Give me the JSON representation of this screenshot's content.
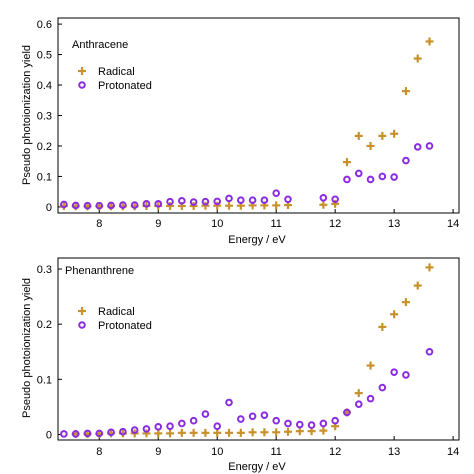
{
  "colors": {
    "radical": "#c8912a",
    "protonated": "#8a2be2",
    "axis": "#000000"
  },
  "chart_data": [
    {
      "type": "scatter",
      "title": "Anthracene",
      "xlabel": "Energy / eV",
      "ylabel": "Pseudo photoionization yield",
      "xlim": [
        7.3,
        14.1
      ],
      "ylim": [
        -0.02,
        0.62
      ],
      "xticks": [
        8,
        9,
        10,
        11,
        12,
        13,
        14
      ],
      "xtick_labels": [
        "8",
        "9",
        "10",
        "11",
        "12",
        "13",
        "14"
      ],
      "yticks": [
        0,
        0.1,
        0.2,
        0.3,
        0.4,
        0.5,
        0.6
      ],
      "ytick_labels": [
        "0",
        "0.1",
        "0.2",
        "0.3",
        "0.4",
        "0.5",
        "0.6"
      ],
      "legend_position": "upper-left",
      "series": [
        {
          "name": "Radical",
          "marker": "plus",
          "points": [
            [
              7.4,
              0.003
            ],
            [
              7.6,
              0.002
            ],
            [
              7.8,
              0.002
            ],
            [
              8.0,
              0.002
            ],
            [
              8.2,
              0.002
            ],
            [
              8.4,
              0.002
            ],
            [
              8.6,
              0.002
            ],
            [
              8.8,
              0.003
            ],
            [
              9.0,
              0.003
            ],
            [
              9.2,
              0.003
            ],
            [
              9.4,
              0.003
            ],
            [
              9.6,
              0.003
            ],
            [
              9.8,
              0.004
            ],
            [
              10.0,
              0.004
            ],
            [
              10.2,
              0.004
            ],
            [
              10.4,
              0.004
            ],
            [
              10.6,
              0.005
            ],
            [
              10.8,
              0.005
            ],
            [
              11.0,
              0.005
            ],
            [
              11.2,
              0.006
            ],
            [
              11.8,
              0.007
            ],
            [
              12.0,
              0.01
            ],
            [
              12.2,
              0.147
            ],
            [
              12.4,
              0.233
            ],
            [
              12.6,
              0.2
            ],
            [
              12.8,
              0.233
            ],
            [
              13.0,
              0.24
            ],
            [
              13.2,
              0.38
            ],
            [
              13.4,
              0.487
            ],
            [
              13.6,
              0.543
            ]
          ]
        },
        {
          "name": "Protonated",
          "marker": "circle",
          "points": [
            [
              7.4,
              0.008
            ],
            [
              7.6,
              0.005
            ],
            [
              7.8,
              0.004
            ],
            [
              8.0,
              0.004
            ],
            [
              8.2,
              0.005
            ],
            [
              8.4,
              0.006
            ],
            [
              8.6,
              0.006
            ],
            [
              8.8,
              0.01
            ],
            [
              9.0,
              0.01
            ],
            [
              9.2,
              0.017
            ],
            [
              9.4,
              0.02
            ],
            [
              9.6,
              0.016
            ],
            [
              9.8,
              0.017
            ],
            [
              10.0,
              0.018
            ],
            [
              10.2,
              0.028
            ],
            [
              10.4,
              0.022
            ],
            [
              10.6,
              0.022
            ],
            [
              10.8,
              0.022
            ],
            [
              11.0,
              0.045
            ],
            [
              11.2,
              0.025
            ],
            [
              11.8,
              0.03
            ],
            [
              12.0,
              0.025
            ],
            [
              12.2,
              0.09
            ],
            [
              12.4,
              0.11
            ],
            [
              12.6,
              0.09
            ],
            [
              12.8,
              0.1
            ],
            [
              13.0,
              0.098
            ],
            [
              13.2,
              0.152
            ],
            [
              13.4,
              0.197
            ],
            [
              13.6,
              0.2
            ]
          ]
        }
      ]
    },
    {
      "type": "scatter",
      "title": "Phenanthrene",
      "xlabel": "Energy / eV",
      "ylabel": "Pseudo photoionization yield",
      "xlim": [
        7.3,
        14.1
      ],
      "ylim": [
        -0.01,
        0.32
      ],
      "xticks": [
        8,
        9,
        10,
        11,
        12,
        13,
        14
      ],
      "xtick_labels": [
        "8",
        "9",
        "10",
        "11",
        "12",
        "13",
        "14"
      ],
      "yticks": [
        0,
        0.1,
        0.2,
        0.3
      ],
      "ytick_labels": [
        "0",
        "0.1",
        "0.2",
        "0.3"
      ],
      "legend_position": "upper-left",
      "series": [
        {
          "name": "Radical",
          "marker": "plus",
          "points": [
            [
              7.6,
              0.001
            ],
            [
              7.8,
              0.001
            ],
            [
              8.0,
              0.001
            ],
            [
              8.2,
              0.002
            ],
            [
              8.4,
              0.002
            ],
            [
              8.6,
              0.002
            ],
            [
              8.8,
              0.002
            ],
            [
              9.0,
              0.002
            ],
            [
              9.2,
              0.002
            ],
            [
              9.4,
              0.003
            ],
            [
              9.6,
              0.003
            ],
            [
              9.8,
              0.003
            ],
            [
              10.0,
              0.003
            ],
            [
              10.2,
              0.003
            ],
            [
              10.4,
              0.003
            ],
            [
              10.6,
              0.004
            ],
            [
              10.8,
              0.004
            ],
            [
              11.0,
              0.004
            ],
            [
              11.2,
              0.005
            ],
            [
              11.4,
              0.006
            ],
            [
              11.6,
              0.006
            ],
            [
              11.8,
              0.007
            ],
            [
              12.0,
              0.015
            ],
            [
              12.2,
              0.04
            ],
            [
              12.4,
              0.075
            ],
            [
              12.6,
              0.125
            ],
            [
              12.8,
              0.195
            ],
            [
              13.0,
              0.218
            ],
            [
              13.2,
              0.24
            ],
            [
              13.4,
              0.27
            ],
            [
              13.6,
              0.303
            ]
          ]
        },
        {
          "name": "Protonated",
          "marker": "circle",
          "points": [
            [
              7.4,
              0.001
            ],
            [
              7.6,
              0.001
            ],
            [
              7.8,
              0.002
            ],
            [
              8.0,
              0.002
            ],
            [
              8.2,
              0.004
            ],
            [
              8.4,
              0.005
            ],
            [
              8.6,
              0.008
            ],
            [
              8.8,
              0.01
            ],
            [
              9.0,
              0.014
            ],
            [
              9.2,
              0.015
            ],
            [
              9.4,
              0.02
            ],
            [
              9.6,
              0.025
            ],
            [
              9.8,
              0.037
            ],
            [
              10.0,
              0.015
            ],
            [
              10.2,
              0.058
            ],
            [
              10.4,
              0.028
            ],
            [
              10.6,
              0.033
            ],
            [
              10.8,
              0.035
            ],
            [
              11.0,
              0.025
            ],
            [
              11.2,
              0.02
            ],
            [
              11.4,
              0.018
            ],
            [
              11.6,
              0.017
            ],
            [
              11.8,
              0.02
            ],
            [
              12.0,
              0.025
            ],
            [
              12.2,
              0.04
            ],
            [
              12.4,
              0.055
            ],
            [
              12.6,
              0.065
            ],
            [
              12.8,
              0.085
            ],
            [
              13.0,
              0.113
            ],
            [
              13.2,
              0.108
            ],
            [
              13.6,
              0.15
            ]
          ]
        }
      ]
    }
  ]
}
